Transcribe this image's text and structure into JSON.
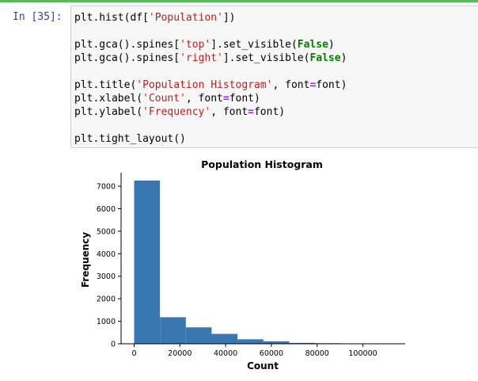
{
  "cell": {
    "prompt": "In [35]:",
    "lines": [
      [
        {
          "t": "plt.hist(df["
        },
        {
          "t": "'Population'",
          "c": "str"
        },
        {
          "t": "])"
        }
      ],
      [],
      [
        {
          "t": "plt.gca().spines["
        },
        {
          "t": "'top'",
          "c": "str"
        },
        {
          "t": "].set_visible("
        },
        {
          "t": "False",
          "c": "kw"
        },
        {
          "t": ")"
        }
      ],
      [
        {
          "t": "plt.gca().spines["
        },
        {
          "t": "'right'",
          "c": "str"
        },
        {
          "t": "].set_visible("
        },
        {
          "t": "False",
          "c": "kw"
        },
        {
          "t": ")"
        }
      ],
      [],
      [
        {
          "t": "plt.title("
        },
        {
          "t": "'Population Histogram'",
          "c": "str"
        },
        {
          "t": ", font"
        },
        {
          "t": "=",
          "c": "op"
        },
        {
          "t": "font)"
        }
      ],
      [
        {
          "t": "plt.xlabel("
        },
        {
          "t": "'Count'",
          "c": "str"
        },
        {
          "t": ", font"
        },
        {
          "t": "=",
          "c": "op"
        },
        {
          "t": "font)"
        }
      ],
      [
        {
          "t": "plt.ylabel("
        },
        {
          "t": "'Frequency'",
          "c": "str"
        },
        {
          "t": ", font"
        },
        {
          "t": "=",
          "c": "op"
        },
        {
          "t": "font)"
        }
      ],
      [],
      [
        {
          "t": "plt.tight_layout()"
        }
      ]
    ]
  },
  "chart_data": {
    "type": "bar",
    "title": "Population Histogram",
    "xlabel": "Count",
    "ylabel": "Frequency",
    "bar_color": "#3a76af",
    "xlim": [
      -5700,
      118500
    ],
    "ylim": [
      0,
      7600
    ],
    "x_ticks": [
      0,
      20000,
      40000,
      60000,
      80000,
      100000
    ],
    "y_ticks": [
      0,
      1000,
      2000,
      3000,
      4000,
      5000,
      6000,
      7000
    ],
    "bins": [
      {
        "start": 0,
        "end": 11300,
        "value": 7250
      },
      {
        "start": 11300,
        "end": 22600,
        "value": 1180
      },
      {
        "start": 22600,
        "end": 33900,
        "value": 730
      },
      {
        "start": 33900,
        "end": 45200,
        "value": 440
      },
      {
        "start": 45200,
        "end": 56500,
        "value": 200
      },
      {
        "start": 56500,
        "end": 67800,
        "value": 110
      },
      {
        "start": 67800,
        "end": 79100,
        "value": 40
      },
      {
        "start": 79100,
        "end": 90400,
        "value": 25
      },
      {
        "start": 90400,
        "end": 101700,
        "value": 8
      },
      {
        "start": 101700,
        "end": 113000,
        "value": 5
      }
    ],
    "spines": {
      "top": false,
      "right": false
    },
    "grid": false
  }
}
